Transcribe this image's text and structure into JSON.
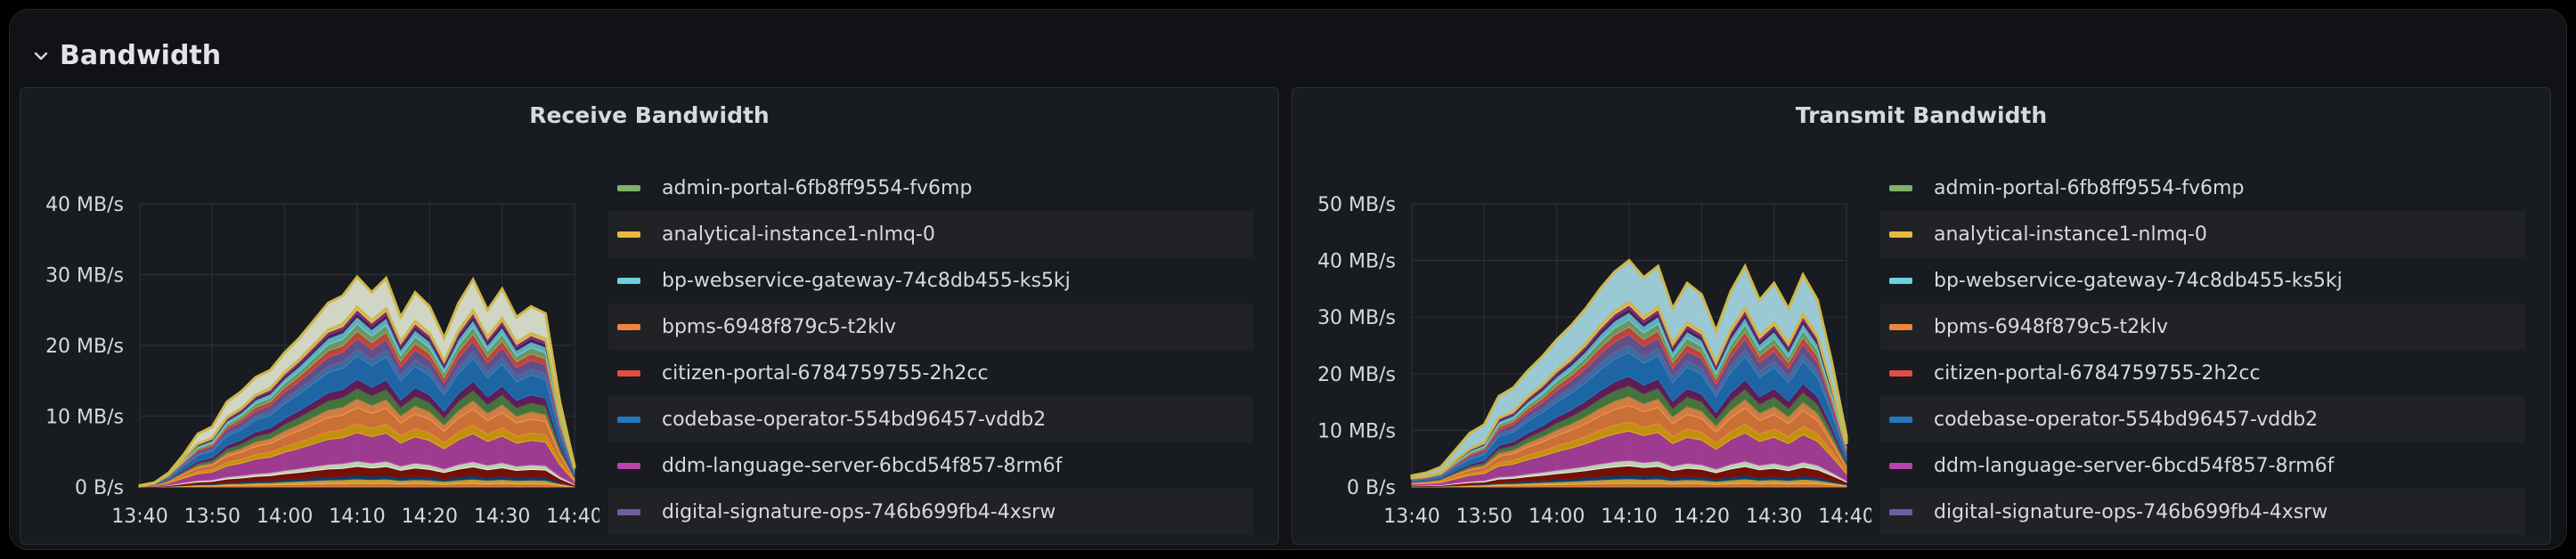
{
  "row": {
    "title": "Bandwidth"
  },
  "series": [
    {
      "name": "admin-portal-6fb8ff9554-fv6mp",
      "color": "#7eb26d"
    },
    {
      "name": "analytical-instance1-nlmq-0",
      "color": "#eab839"
    },
    {
      "name": "bp-webservice-gateway-74c8db455-ks5kj",
      "color": "#6ed0e0"
    },
    {
      "name": "bpms-6948f879c5-t2klv",
      "color": "#ef843c"
    },
    {
      "name": "citizen-portal-6784759755-2h2cc",
      "color": "#e24d42"
    },
    {
      "name": "codebase-operator-554bd96457-vddb2",
      "color": "#1f78c1"
    },
    {
      "name": "ddm-language-server-6bcd54f857-8rm6f",
      "color": "#ba43a9"
    },
    {
      "name": "digital-signature-ops-746b699fb4-4xsrw",
      "color": "#705da0"
    }
  ],
  "panels": [
    {
      "title": "Receive Bandwidth",
      "chart_data": {
        "type": "area",
        "stacked": true,
        "x": [
          "13:40",
          "13:42",
          "13:44",
          "13:46",
          "13:48",
          "13:50",
          "13:52",
          "13:54",
          "13:56",
          "13:58",
          "14:00",
          "14:02",
          "14:04",
          "14:06",
          "14:08",
          "14:10",
          "14:12",
          "14:14",
          "14:16",
          "14:18",
          "14:20",
          "14:22",
          "14:24",
          "14:26",
          "14:28",
          "14:30",
          "14:32",
          "14:34",
          "14:36",
          "14:38",
          "14:40"
        ],
        "xticks": [
          "13:40",
          "13:50",
          "14:00",
          "14:10",
          "14:20",
          "14:30",
          "14:40"
        ],
        "yticks": [
          "0 B/s",
          "10 MB/s",
          "20 MB/s",
          "30 MB/s",
          "40 MB/s"
        ],
        "ylim": [
          0,
          40
        ],
        "total_mb_s": [
          0.2,
          0.6,
          2,
          4.5,
          7.5,
          8.5,
          12,
          13.5,
          15.5,
          16.5,
          19,
          21,
          23.5,
          26,
          27,
          29.7,
          27.5,
          29.5,
          24,
          27.5,
          25.5,
          21,
          26,
          29.3,
          25,
          28,
          24,
          25.5,
          24.5,
          12,
          3
        ],
        "top_band_mb_s": [
          0.1,
          0.1,
          0.2,
          0.5,
          1.4,
          1.6,
          2.2,
          2.4,
          2.5,
          2.6,
          2.8,
          3,
          3.4,
          3.8,
          4,
          4.3,
          4,
          4.3,
          3.5,
          4.1,
          3.8,
          3.2,
          3.9,
          4.4,
          3.8,
          4.2,
          3.6,
          3.8,
          3.6,
          1.8,
          0.4
        ]
      }
    },
    {
      "title": "Transmit Bandwidth",
      "chart_data": {
        "type": "area",
        "stacked": true,
        "x": [
          "13:40",
          "13:42",
          "13:44",
          "13:46",
          "13:48",
          "13:50",
          "13:52",
          "13:54",
          "13:56",
          "13:58",
          "14:00",
          "14:02",
          "14:04",
          "14:06",
          "14:08",
          "14:10",
          "14:12",
          "14:14",
          "14:16",
          "14:18",
          "14:20",
          "14:22",
          "14:24",
          "14:26",
          "14:28",
          "14:30",
          "14:32",
          "14:34",
          "14:36",
          "14:38",
          "14:40"
        ],
        "xticks": [
          "13:40",
          "13:50",
          "14:00",
          "14:10",
          "14:20",
          "14:30",
          "14:40"
        ],
        "yticks": [
          "0 B/s",
          "10 MB/s",
          "20 MB/s",
          "30 MB/s",
          "40 MB/s",
          "50 MB/s"
        ],
        "ylim": [
          0,
          50
        ],
        "total_mb_s": [
          2,
          2.5,
          3.5,
          6.5,
          9.5,
          11,
          16,
          17.5,
          20.5,
          23,
          26,
          28.5,
          31.5,
          35,
          38,
          40,
          37,
          39,
          31.5,
          36,
          34,
          27.5,
          34.5,
          39,
          33,
          36,
          31.5,
          37.5,
          33,
          22,
          9
        ],
        "top_band_mb_s": [
          0.4,
          0.6,
          1,
          1.8,
          2.8,
          3.2,
          3.8,
          4.2,
          4.6,
          5,
          5.4,
          5.8,
          6.2,
          6.6,
          7,
          7.4,
          7,
          7.2,
          6.2,
          7,
          6.6,
          5.6,
          6.8,
          7.4,
          6.4,
          7,
          6.2,
          7,
          6.4,
          4.4,
          1.4
        ]
      }
    }
  ]
}
